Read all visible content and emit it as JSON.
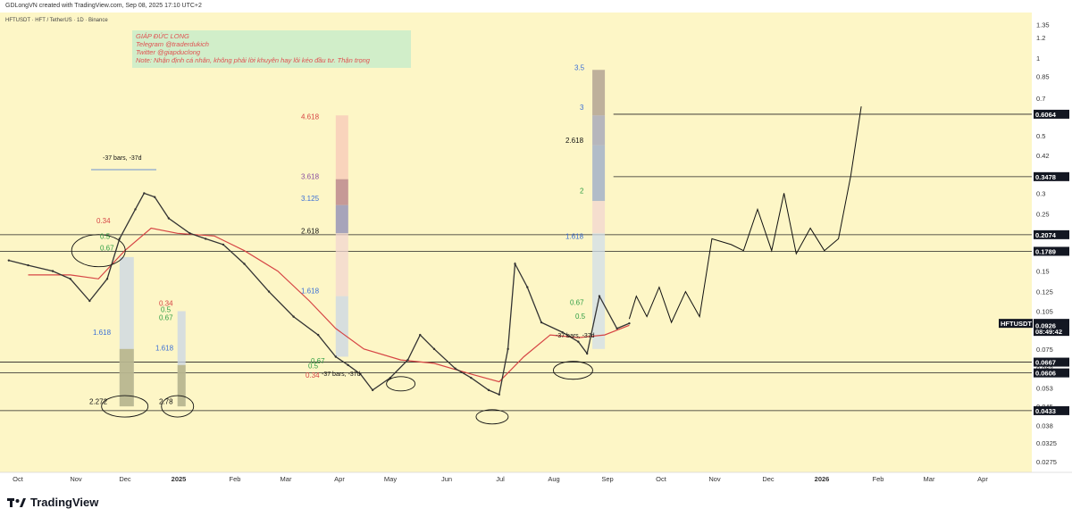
{
  "header": {
    "credit": "GDLongVN created with TradingView.com, Sep 08, 2025 17:10 UTC+2"
  },
  "symbol_line": "HFTUSDT · HFT / TetherUS · 1D · Binance",
  "note": {
    "lines": [
      "GIÁP ĐỨC LONG",
      "Telegram @traderdukich",
      "Twitter @giapduclong",
      "Note: Nhận định cá nhân, không phải lời khuyên hay lôi kéo đầu tư. Thận trọng"
    ]
  },
  "colors": {
    "background": "#fdf6c6",
    "candle_up": "#333333",
    "candle_down": "#333333",
    "ma": "#d64545",
    "note_bg": "#c9ecc9",
    "note_text": "#e05050",
    "label_bg": "#131722",
    "label_text": "#ffffff"
  },
  "footer": {
    "brand": "TradingView",
    "logo_icon": "tradingview-logo-icon"
  },
  "chart_data": {
    "type": "line",
    "scale": "log",
    "title": "HFTUSDT · HFT / TetherUS · 1D · Binance",
    "y_ticks": [
      1.35,
      1.2,
      1.0,
      0.85,
      0.7,
      0.5,
      0.42,
      0.35,
      0.3,
      0.25,
      0.21,
      0.15,
      0.125,
      0.105,
      0.075,
      0.063,
      0.053,
      0.045,
      0.038,
      0.0325,
      0.0275
    ],
    "ylim": [
      0.025,
      1.5
    ],
    "x_ticks": [
      "Oct",
      "Nov",
      "Dec",
      "2025",
      "Feb",
      "Mar",
      "Apr",
      "May",
      "Jun",
      "Jul",
      "Aug",
      "Sep",
      "Oct",
      "Nov",
      "Dec",
      "2026",
      "Feb",
      "Mar",
      "Apr"
    ],
    "price_labels": [
      {
        "value": "0.6064",
        "type": "level"
      },
      {
        "value": "0.3478",
        "type": "level"
      },
      {
        "value": "0.2074",
        "type": "level"
      },
      {
        "value": "0.1789",
        "type": "level"
      },
      {
        "value": "HFTUSDT",
        "type": "symbol"
      },
      {
        "value": "0.0942",
        "type": "current"
      },
      {
        "value": "08:49:42",
        "type": "countdown"
      },
      {
        "value": "0.0926",
        "type": "ma"
      },
      {
        "value": "0.0667",
        "type": "level"
      },
      {
        "value": "0.0606",
        "type": "level"
      },
      {
        "value": "0.0433",
        "type": "level"
      }
    ],
    "horizontal_levels": [
      0.6064,
      0.3478,
      0.2074,
      0.1789,
      0.0667,
      0.0606,
      0.0433
    ],
    "price_series": {
      "x": [
        "2024-09-20",
        "2024-10-01",
        "2024-10-15",
        "2024-10-25",
        "2024-11-05",
        "2024-11-15",
        "2024-11-22",
        "2024-12-01",
        "2024-12-06",
        "2024-12-12",
        "2024-12-20",
        "2025-01-01",
        "2025-01-10",
        "2025-01-20",
        "2025-02-01",
        "2025-02-15",
        "2025-03-01",
        "2025-03-15",
        "2025-03-25",
        "2025-04-01",
        "2025-04-08",
        "2025-04-15",
        "2025-04-25",
        "2025-05-05",
        "2025-05-12",
        "2025-05-20",
        "2025-06-01",
        "2025-06-10",
        "2025-06-20",
        "2025-06-26",
        "2025-07-01",
        "2025-07-05",
        "2025-07-12",
        "2025-07-20",
        "2025-08-01",
        "2025-08-10",
        "2025-08-15",
        "2025-08-22",
        "2025-09-01",
        "2025-09-08"
      ],
      "y": [
        0.165,
        0.158,
        0.15,
        0.14,
        0.115,
        0.14,
        0.2,
        0.26,
        0.3,
        0.29,
        0.24,
        0.21,
        0.2,
        0.19,
        0.16,
        0.125,
        0.1,
        0.085,
        0.07,
        0.065,
        0.06,
        0.052,
        0.058,
        0.068,
        0.085,
        0.075,
        0.063,
        0.058,
        0.052,
        0.05,
        0.075,
        0.16,
        0.13,
        0.095,
        0.087,
        0.08,
        0.072,
        0.12,
        0.09,
        0.0942
      ]
    },
    "ma_series": {
      "x": [
        "2024-10-01",
        "2024-10-25",
        "2024-11-10",
        "2024-11-25",
        "2024-12-10",
        "2024-12-25",
        "2025-01-15",
        "2025-02-01",
        "2025-02-20",
        "2025-03-10",
        "2025-03-25",
        "2025-04-10",
        "2025-05-01",
        "2025-05-20",
        "2025-06-10",
        "2025-06-26",
        "2025-07-10",
        "2025-07-25",
        "2025-08-10",
        "2025-08-25",
        "2025-09-08"
      ],
      "y": [
        0.145,
        0.145,
        0.14,
        0.18,
        0.22,
        0.21,
        0.205,
        0.18,
        0.15,
        0.115,
        0.09,
        0.075,
        0.068,
        0.066,
        0.06,
        0.056,
        0.07,
        0.085,
        0.083,
        0.085,
        0.0926
      ]
    },
    "projection": {
      "x": [
        "2025-09-08",
        "2025-09-12",
        "2025-09-18",
        "2025-09-25",
        "2025-10-02",
        "2025-10-10",
        "2025-10-18",
        "2025-10-25",
        "2025-11-05",
        "2025-11-12",
        "2025-11-20",
        "2025-11-28",
        "2025-12-05",
        "2025-12-12",
        "2025-12-20",
        "2025-12-28",
        "2026-01-05",
        "2026-01-12",
        "2026-01-18"
      ],
      "y": [
        0.098,
        0.12,
        0.1,
        0.13,
        0.095,
        0.125,
        0.1,
        0.2,
        0.19,
        0.18,
        0.26,
        0.18,
        0.3,
        0.175,
        0.22,
        0.18,
        0.2,
        0.35,
        0.65
      ]
    },
    "fib_labels_left": [
      "0.34",
      "0.5",
      "0.67",
      "1.618",
      "2.272",
      "0.34",
      "0.5",
      "0.67",
      "1.618",
      "2.78"
    ],
    "fib_labels_mid": [
      "4.618",
      "3.618",
      "3.125",
      "2.618",
      "1.618",
      "0.34",
      "0.5",
      "0.67"
    ],
    "fib_labels_right": [
      "3.5",
      "3",
      "2.618",
      "2",
      "1.618",
      "0.67",
      "0.5"
    ],
    "measure_labels": [
      "-37 bars, -37d",
      "-37 bars, -37d",
      "-37 bars, -37d"
    ]
  }
}
